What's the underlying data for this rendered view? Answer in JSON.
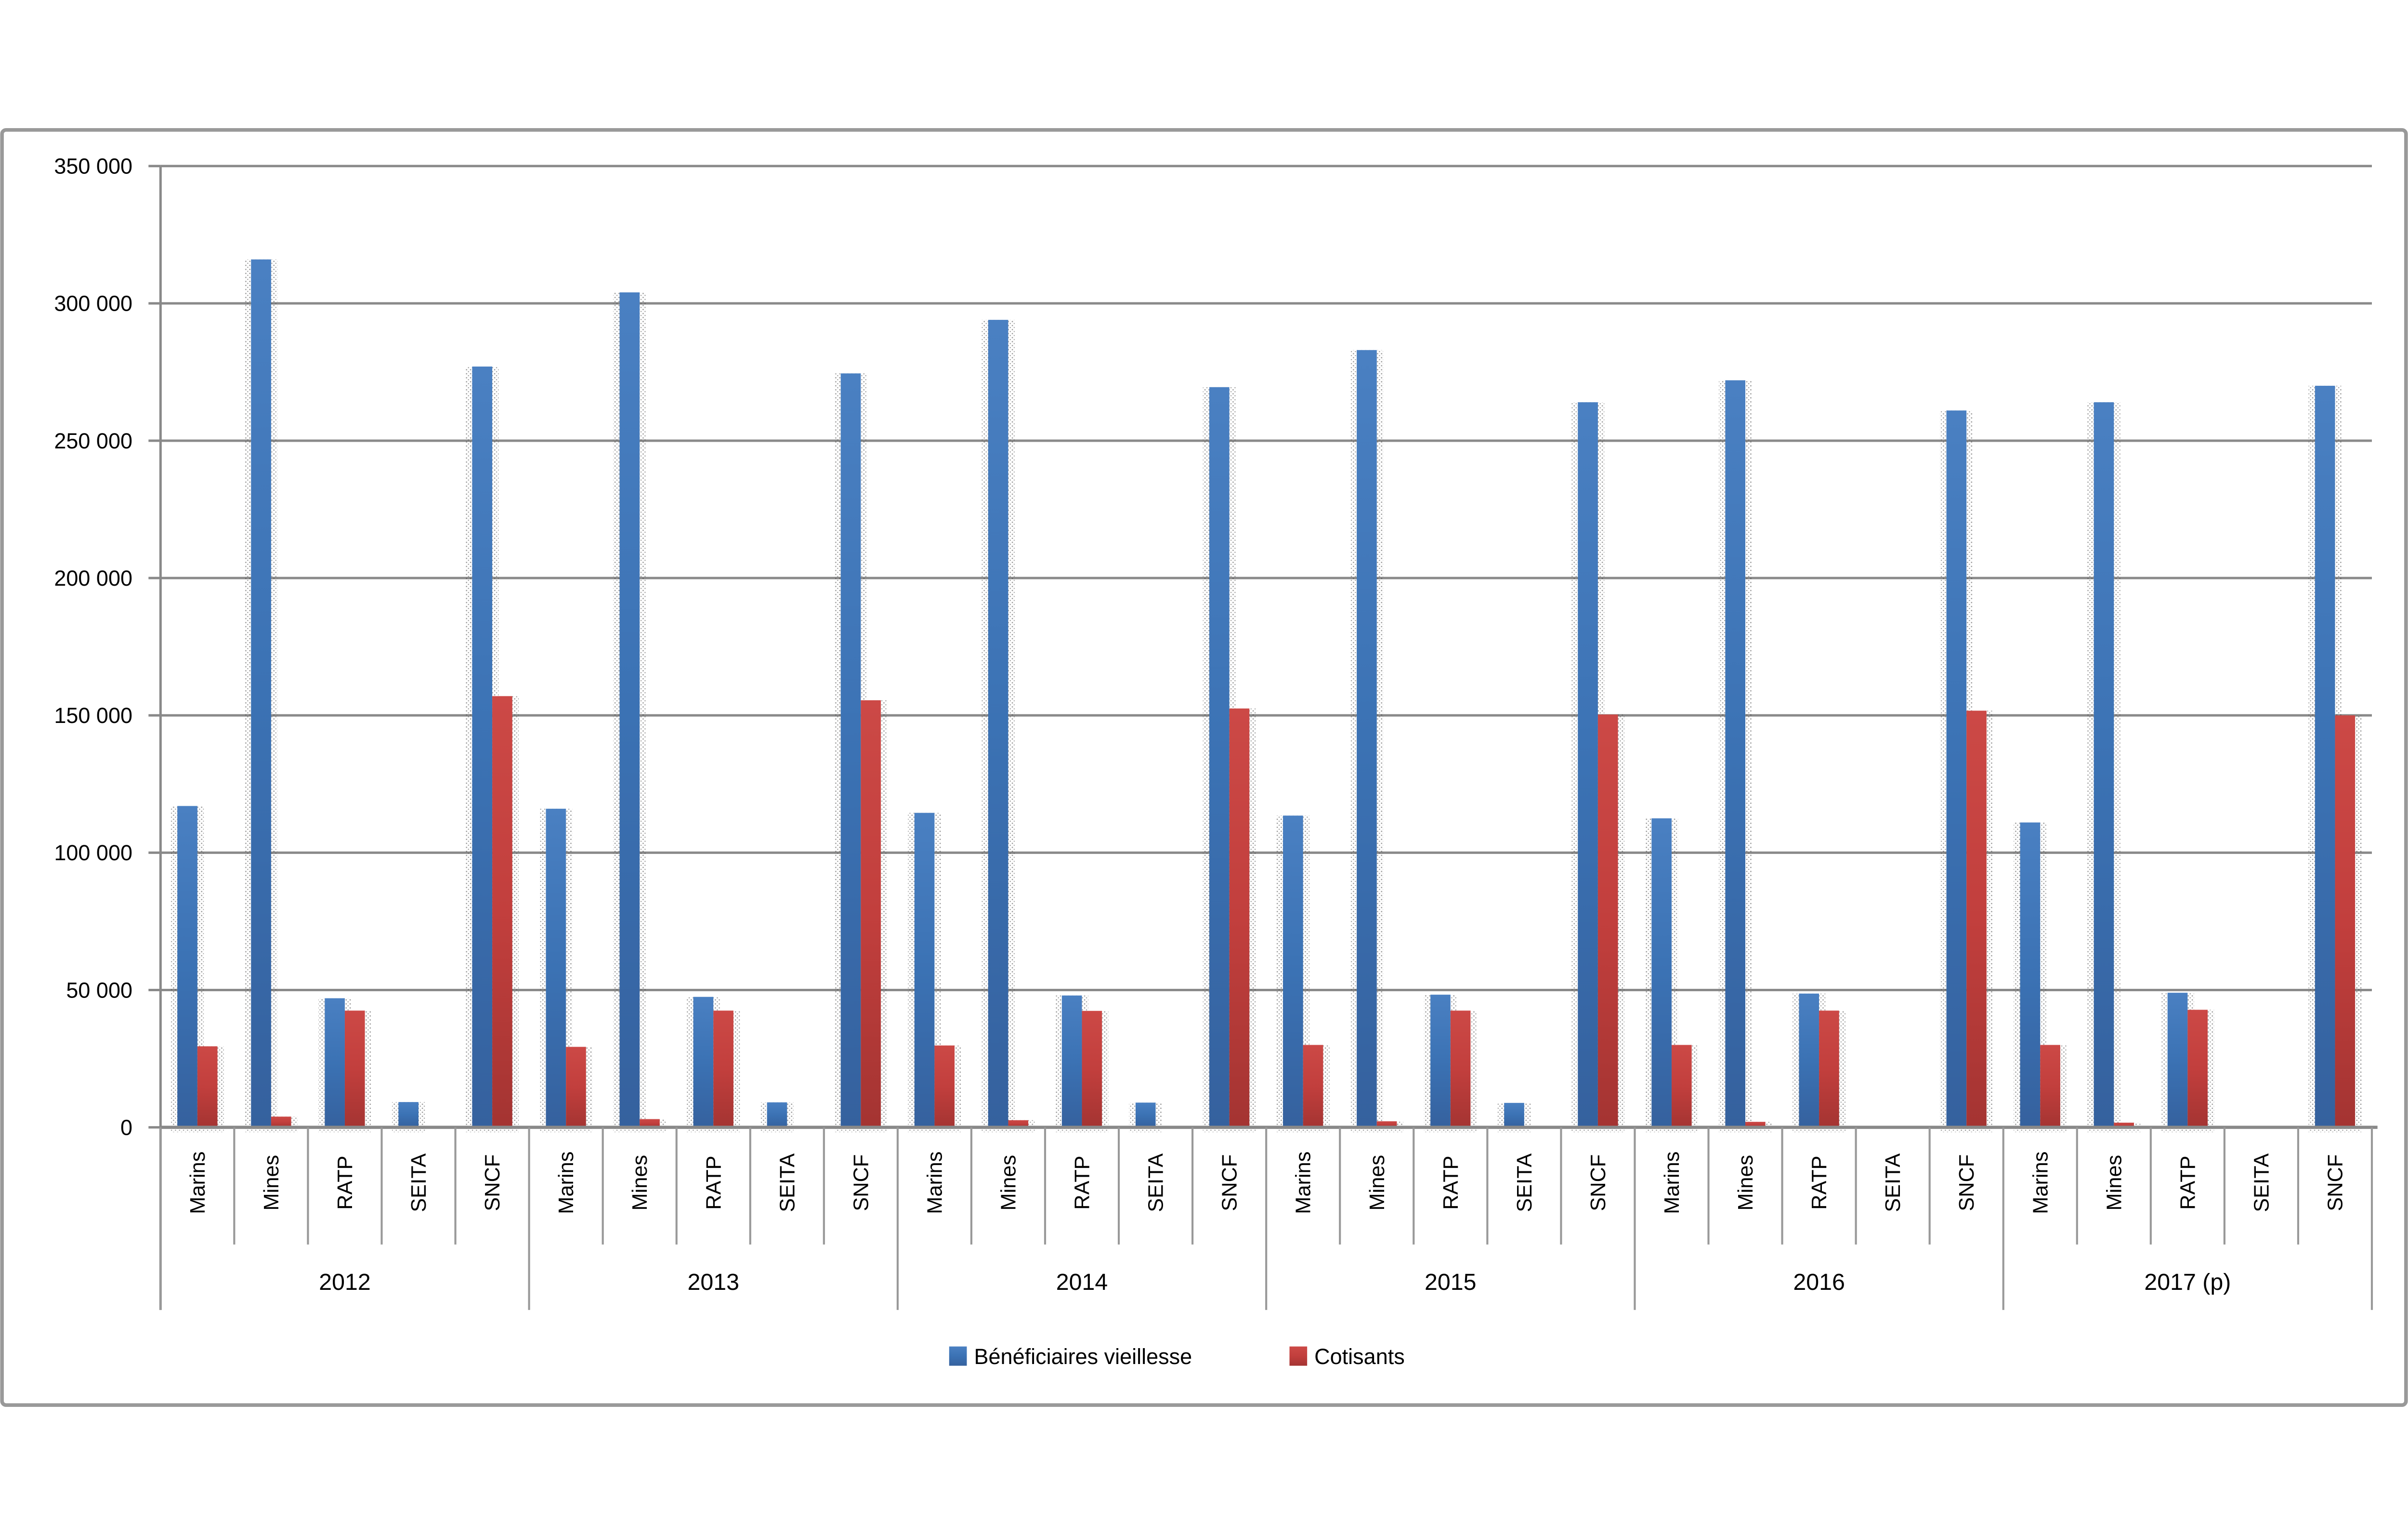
{
  "chart_data": {
    "type": "bar",
    "title": "",
    "xlabel": "",
    "ylabel": "",
    "grid": true,
    "legend_position": "bottom",
    "ylim": [
      0,
      350000
    ],
    "y_axis": {
      "min": 0,
      "max": 350000,
      "step": 50000,
      "tick_labels": [
        "0",
        "50 000",
        "100 000",
        "150 000",
        "200 000",
        "250 000",
        "300 000",
        "350 000"
      ]
    },
    "years": [
      "2012",
      "2013",
      "2014",
      "2015",
      "2016",
      "2017 (p)"
    ],
    "categories": [
      "Marins",
      "Mines",
      "RATP",
      "SEITA",
      "SNCF"
    ],
    "series": [
      {
        "name": "Bénéficiaires vieillesse",
        "color": "#3B72B4",
        "color_top": "#4A80C2",
        "color_bottom": "#35619E",
        "values": [
          [
            117000,
            316000,
            47000,
            9200,
            277000
          ],
          [
            116000,
            304000,
            47500,
            9100,
            274500
          ],
          [
            114500,
            294000,
            48000,
            9000,
            269500
          ],
          [
            113500,
            283000,
            48300,
            8900,
            264000
          ],
          [
            112500,
            272000,
            48700,
            null,
            261000
          ],
          [
            111000,
            264000,
            49000,
            null,
            270000
          ]
        ]
      },
      {
        "name": "Cotisants",
        "color": "#C23F3D",
        "color_top": "#CC4946",
        "color_bottom": "#A43432",
        "values": [
          [
            29500,
            3900,
            42500,
            null,
            157000
          ],
          [
            29300,
            3000,
            42500,
            null,
            155500
          ],
          [
            29800,
            2600,
            42400,
            null,
            152500
          ],
          [
            30000,
            2200,
            42500,
            null,
            150300
          ],
          [
            30000,
            2000,
            42500,
            null,
            151700
          ],
          [
            30000,
            1700,
            42800,
            null,
            150000
          ]
        ]
      }
    ],
    "colors": {
      "gridline": "#8A8A8A",
      "axis": "#898989",
      "separator": "#999999",
      "frame_border": "#999999",
      "background": "#FFFFFF"
    }
  }
}
